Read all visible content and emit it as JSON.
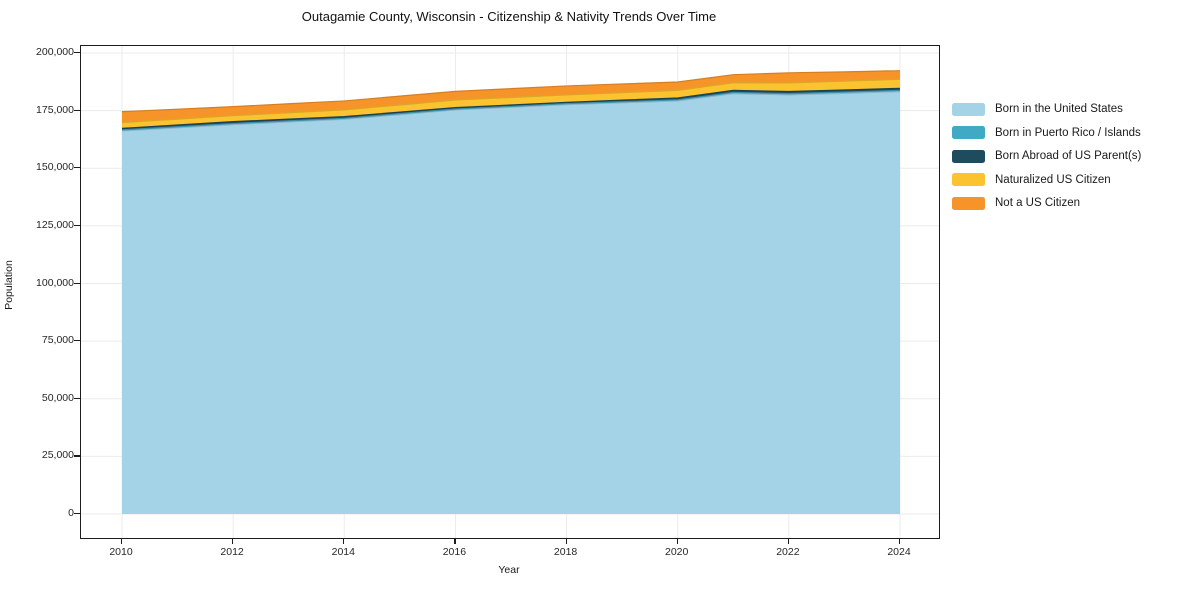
{
  "title": "Outagamie County, Wisconsin - Citizenship & Nativity Trends Over Time",
  "xaxis_title": "Year",
  "yaxis_title": "Population",
  "chart_data": {
    "type": "area",
    "stacked": true,
    "title": "Outagamie County, Wisconsin - Citizenship & Nativity Trends Over Time",
    "xlabel": "Year",
    "ylabel": "Population",
    "x": [
      2010,
      2011,
      2012,
      2013,
      2014,
      2015,
      2016,
      2017,
      2018,
      2019,
      2020,
      2021,
      2022,
      2023,
      2024
    ],
    "series": [
      {
        "name": "Born in the United States",
        "color": "#a4d3e8",
        "values": [
          166200,
          167550,
          168930,
          170100,
          171240,
          173270,
          175300,
          176450,
          177600,
          178400,
          179200,
          182350,
          181800,
          182500,
          183240
        ]
      },
      {
        "name": "Born in Puerto Rico / Islands",
        "color": "#42a9c5",
        "values": [
          450,
          450,
          460,
          460,
          430,
          430,
          400,
          400,
          420,
          450,
          500,
          550,
          560,
          550,
          530
        ]
      },
      {
        "name": "Born Abroad of US Parent(s)",
        "color": "#1f4b5e",
        "values": [
          650,
          750,
          840,
          770,
          730,
          650,
          600,
          600,
          580,
          700,
          800,
          900,
          940,
          910,
          900
        ]
      },
      {
        "name": "Naturalized US Citizen",
        "color": "#fcc330",
        "values": [
          2500,
          2550,
          2600,
          2750,
          2900,
          3100,
          3300,
          3250,
          3200,
          3250,
          3300,
          3300,
          3700,
          3800,
          3910
        ]
      },
      {
        "name": "Not a US Citizen",
        "color": "#f79429",
        "values": [
          4760,
          4300,
          3900,
          3900,
          3900,
          3830,
          3750,
          3830,
          3900,
          3770,
          3630,
          3500,
          4400,
          4040,
          3750
        ]
      }
    ],
    "xticks": [
      2010,
      2012,
      2014,
      2016,
      2018,
      2020,
      2022,
      2024
    ],
    "xtick_labels": [
      "2010",
      "2012",
      "2014",
      "2016",
      "2018",
      "2020",
      "2022",
      "2024"
    ],
    "yticks": [
      0,
      25000,
      50000,
      75000,
      100000,
      125000,
      150000,
      175000,
      200000
    ],
    "ytick_labels": [
      "0",
      "25,000",
      "50,000",
      "75,000",
      "100,000",
      "125,000",
      "150,000",
      "175,000",
      "200,000"
    ],
    "xlim": [
      2009.26,
      2024.74
    ],
    "ylim": [
      -10400,
      203000
    ],
    "grid": true,
    "grid_color": "#ebebeb",
    "legend_position": "right"
  },
  "legend": {
    "items": [
      {
        "label": "Born in the United States",
        "color": "#a4d3e8"
      },
      {
        "label": "Born in Puerto Rico / Islands",
        "color": "#42a9c5"
      },
      {
        "label": "Born Abroad of US Parent(s)",
        "color": "#1f4b5e"
      },
      {
        "label": "Naturalized US Citizen",
        "color": "#fcc330"
      },
      {
        "label": "Not a US Citizen",
        "color": "#f79429"
      }
    ]
  }
}
